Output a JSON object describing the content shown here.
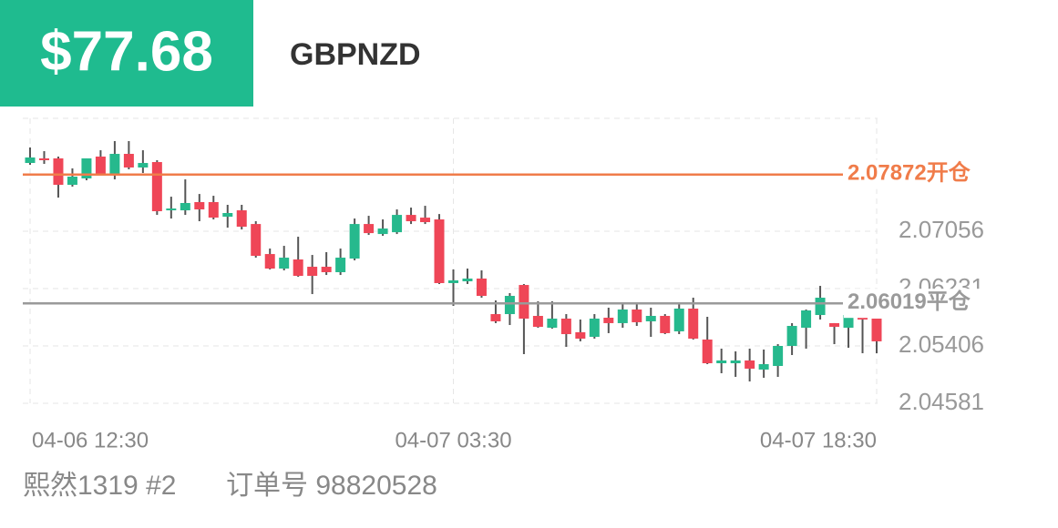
{
  "header": {
    "amount": "$77.68",
    "symbol": "GBPNZD"
  },
  "footer": {
    "account": "熙然1319 #2",
    "order": "订单号 98820528"
  },
  "chart_data": {
    "type": "candlestick",
    "categories": [
      "04-06 12:30",
      null,
      null,
      null,
      null,
      null,
      null,
      null,
      null,
      null,
      null,
      null,
      null,
      null,
      null,
      null,
      null,
      null,
      null,
      null,
      null,
      null,
      null,
      null,
      null,
      null,
      null,
      null,
      null,
      null,
      "04-07 03:30",
      null,
      null,
      null,
      null,
      null,
      null,
      null,
      null,
      null,
      null,
      null,
      null,
      null,
      null,
      null,
      null,
      null,
      null,
      null,
      null,
      null,
      null,
      null,
      null,
      null,
      null,
      null,
      null,
      null,
      "04-07 18:30"
    ],
    "open": [
      2.08038,
      2.08104,
      2.08104,
      2.07724,
      2.07816,
      2.0813,
      2.07868,
      2.08169,
      2.07973,
      2.08051,
      2.07357,
      2.07357,
      2.07475,
      2.07475,
      2.07265,
      2.07357,
      2.0716,
      2.06728,
      2.06519,
      2.0665,
      2.06545,
      2.06545,
      2.06467,
      2.06663,
      2.0716,
      2.07016,
      2.07042,
      2.07291,
      2.07252,
      2.07226,
      2.0631,
      2.06336,
      2.06375,
      2.05864,
      2.05864,
      2.06283,
      2.05838,
      2.05668,
      2.05799,
      2.05603,
      2.05537,
      2.05812,
      2.05734,
      2.0593,
      2.0576,
      2.05838,
      2.05616,
      2.05943,
      2.05498,
      2.05157,
      2.05157,
      2.05197,
      2.05066,
      2.05118,
      2.05406,
      2.05668,
      2.05851,
      2.05734,
      2.05668,
      2.05812,
      2.05799
    ],
    "high": [
      2.08261,
      2.08208,
      2.0813,
      2.0796,
      2.08104,
      2.08221,
      2.08353,
      2.08353,
      2.08221,
      2.08078,
      2.07553,
      2.07802,
      2.07592,
      2.07566,
      2.07436,
      2.07436,
      2.072,
      2.06807,
      2.06846,
      2.06977,
      2.06715,
      2.06755,
      2.06807,
      2.07239,
      2.07278,
      2.07226,
      2.0737,
      2.07396,
      2.07422,
      2.07304,
      2.06506,
      2.06519,
      2.06493,
      2.06061,
      2.06166,
      2.06297,
      2.06048,
      2.06048,
      2.05864,
      2.05786,
      2.05864,
      2.05956,
      2.06022,
      2.06009,
      2.05956,
      2.05864,
      2.06022,
      2.061,
      2.05825,
      2.05367,
      2.05328,
      2.05367,
      2.05354,
      2.05432,
      2.05734,
      2.0593,
      2.0627,
      2.05734,
      2.05904,
      2.05812,
      2.05799
    ],
    "low": [
      2.08012,
      2.08025,
      2.0754,
      2.07698,
      2.07789,
      2.07855,
      2.07802,
      2.07947,
      2.07894,
      2.07291,
      2.07239,
      2.07291,
      2.072,
      2.07226,
      2.07108,
      2.07082,
      2.06676,
      2.06506,
      2.06493,
      2.06401,
      2.06152,
      2.06427,
      2.06427,
      2.06637,
      2.07003,
      2.0699,
      2.07016,
      2.0716,
      2.0716,
      2.06297,
      2.05982,
      2.06297,
      2.061,
      2.05734,
      2.05707,
      2.05288,
      2.05668,
      2.05655,
      2.05393,
      2.05472,
      2.05511,
      2.0559,
      2.05668,
      2.05694,
      2.05537,
      2.05576,
      2.05576,
      2.05498,
      2.05144,
      2.05013,
      2.04961,
      2.04895,
      2.04948,
      2.04961,
      2.05275,
      2.05367,
      2.05786,
      2.05432,
      2.0538,
      2.05301,
      2.05301
    ],
    "close": [
      2.08117,
      2.08078,
      2.07724,
      2.07842,
      2.08104,
      2.07868,
      2.08169,
      2.07973,
      2.08038,
      2.07344,
      2.07383,
      2.07462,
      2.0737,
      2.07252,
      2.07318,
      2.07121,
      2.06702,
      2.06519,
      2.06676,
      2.06414,
      2.06414,
      2.06467,
      2.06676,
      2.0716,
      2.07029,
      2.07095,
      2.07291,
      2.072,
      2.07187,
      2.0631,
      2.06349,
      2.06375,
      2.06126,
      2.0576,
      2.06126,
      2.05799,
      2.05681,
      2.05799,
      2.05576,
      2.05511,
      2.05799,
      2.05734,
      2.0593,
      2.05747,
      2.05838,
      2.0559,
      2.05943,
      2.05511,
      2.05157,
      2.05197,
      2.05197,
      2.05079,
      2.05144,
      2.05406,
      2.05694,
      2.05917,
      2.061,
      2.05681,
      2.05851,
      2.05786,
      2.05472
    ],
    "up_color": "#26b98d",
    "down_color": "#ef4657",
    "ylim": [
      2.04581,
      2.0868
    ],
    "yticks": [
      2.04581,
      2.05406,
      2.06231,
      2.07056
    ],
    "grid": true,
    "open_line": {
      "value": 2.07872,
      "label": "开仓",
      "color": "#f07c4a"
    },
    "close_line": {
      "value": 2.06019,
      "label": "平仓",
      "color": "#9a9a9a"
    }
  }
}
